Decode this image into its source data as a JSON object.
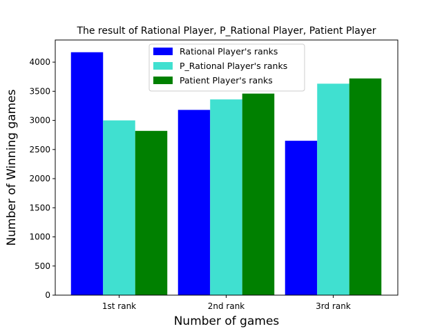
{
  "chart_data": {
    "type": "bar",
    "title": "The result of Rational Player, P_Rational Player, Patient Player",
    "xlabel": "Number of games",
    "ylabel": "Number of Winning games",
    "categories": [
      "1st rank",
      "2nd rank",
      "3rd rank"
    ],
    "ylim": [
      0,
      4380
    ],
    "yticks": [
      0,
      500,
      1000,
      1500,
      2000,
      2500,
      3000,
      3500,
      4000
    ],
    "grid": false,
    "legend_position": "top-center",
    "series": [
      {
        "name": "Rational Player's ranks",
        "color": "#0000ff",
        "values": [
          4170,
          3180,
          2650
        ]
      },
      {
        "name": "P_Rational Player's ranks",
        "color": "#40e0d0",
        "values": [
          3000,
          3360,
          3630
        ]
      },
      {
        "name": "Patient Player's ranks",
        "color": "#008000",
        "values": [
          2820,
          3460,
          3720
        ]
      }
    ]
  }
}
